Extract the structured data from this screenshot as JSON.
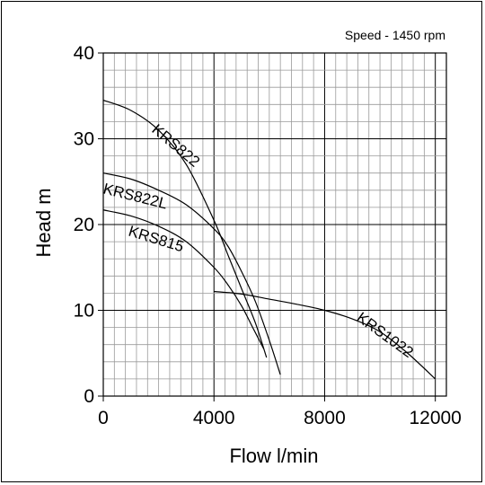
{
  "chart_data": {
    "type": "line",
    "title": "",
    "annotation": "Speed - 1450 rpm",
    "xlabel": "Flow l/min",
    "ylabel": "Head m",
    "xlim": [
      0,
      12400
    ],
    "ylim": [
      0,
      40
    ],
    "x_ticks": [
      0,
      4000,
      8000,
      12000
    ],
    "y_ticks": [
      0,
      10,
      20,
      30,
      40
    ],
    "x_tick_labels": [
      "0",
      "4000",
      "8000",
      "12000"
    ],
    "y_tick_labels": [
      "0",
      "10",
      "20",
      "30",
      "40"
    ],
    "grid": true,
    "series": [
      {
        "name": "KRS822",
        "x": [
          0,
          1000,
          2000,
          3000,
          4000,
          4500,
          5000,
          5500,
          5900
        ],
        "y": [
          34.5,
          33.3,
          31.0,
          27.0,
          20.5,
          16.5,
          12.5,
          8.5,
          4.5
        ]
      },
      {
        "name": "KRS822L",
        "x": [
          0,
          1000,
          2000,
          3000,
          4000,
          4500,
          5000,
          5500,
          6000,
          6400
        ],
        "y": [
          26.0,
          25.3,
          24.0,
          22.3,
          19.5,
          17.5,
          14.5,
          11.0,
          6.5,
          2.5
        ]
      },
      {
        "name": "KRS815",
        "x": [
          0,
          1000,
          2000,
          3000,
          4000,
          4500,
          5000,
          5400,
          5800
        ],
        "y": [
          21.7,
          21.0,
          19.8,
          18.0,
          15.0,
          13.0,
          10.5,
          8.0,
          5.5
        ]
      },
      {
        "name": "KRS1022",
        "x": [
          4000,
          5000,
          6000,
          7000,
          8000,
          9000,
          10000,
          11000,
          12000
        ],
        "y": [
          12.2,
          11.9,
          11.3,
          10.7,
          10.0,
          9.0,
          7.5,
          5.0,
          2.0
        ]
      }
    ]
  }
}
